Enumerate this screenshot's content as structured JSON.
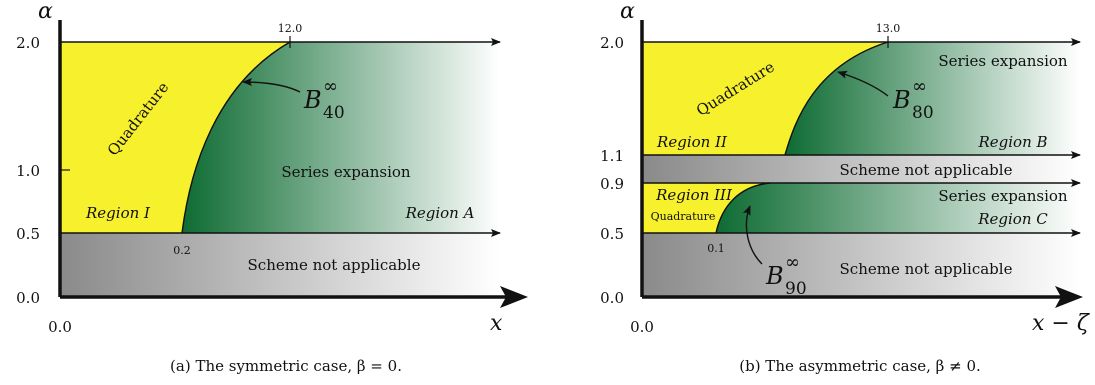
{
  "panel_a": {
    "y_axis_label": "α",
    "x_axis_label": "x",
    "y_ticks": [
      "2.0",
      "1.0",
      "0.5",
      "0.0"
    ],
    "x_origin": "0.0",
    "top_tick": "12.0",
    "bottom_tick": "0.2",
    "quadrature": "Quadrature",
    "series_expansion": "Series expansion",
    "region_1": "Region I",
    "region_a": "Region A",
    "scheme_na": "Scheme not applicable",
    "b_symbol": "B",
    "b_sub": "40",
    "b_sup": "∞",
    "caption": "(a) The symmetric case, β = 0."
  },
  "panel_b": {
    "y_axis_label": "α",
    "x_axis_label": "x − ζ",
    "y_ticks": [
      "2.0",
      "1.1",
      "0.9",
      "0.5",
      "0.0"
    ],
    "x_origin": "0.0",
    "top_tick": "13.0",
    "bottom_tick": "0.1",
    "quadrature": "Quadrature",
    "quadrature_small": "Quadrature",
    "series_expansion_top": "Series expansion",
    "series_expansion_mid": "Series expansion",
    "region_2": "Region II",
    "region_b": "Region B",
    "region_3": "Region III",
    "region_c": "Region C",
    "scheme_na_mid": "Scheme not applicable",
    "scheme_na_bottom": "Scheme not applicable",
    "b_top_symbol": "B",
    "b_top_sub": "80",
    "b_top_sup": "∞",
    "b_bot_symbol": "B",
    "b_bot_sub": "90",
    "b_bot_sup": "∞",
    "caption": "(b) The asymmetric case, β ≠ 0."
  },
  "colors": {
    "quadrature_yellow": "#f7f02c",
    "series_green": "#0d6b32",
    "scheme_gray": "#8a8a8a"
  }
}
